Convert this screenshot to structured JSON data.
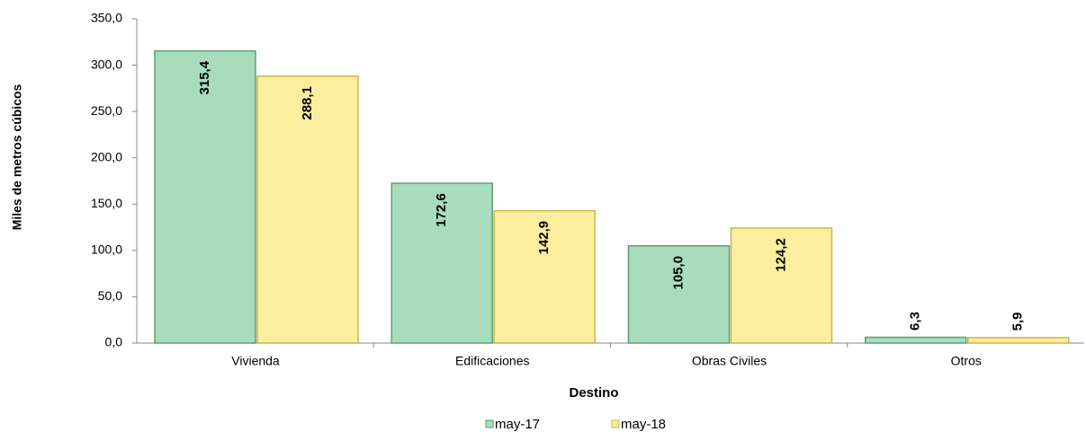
{
  "chart_data": {
    "type": "bar",
    "x_label": "Destino",
    "y_label": "Miles de metros cúbicos",
    "categories": [
      "Vivienda",
      "Edificaciones",
      "Obras Civiles",
      "Otros"
    ],
    "series": [
      {
        "name": "may-17",
        "color": "#a8dcbc",
        "values": [
          315.4,
          172.6,
          105.0,
          6.3
        ],
        "value_labels": [
          "315,4",
          "172,6",
          "105,0",
          "6,3"
        ]
      },
      {
        "name": "may-18",
        "color": "#fcee9f",
        "values": [
          288.1,
          142.9,
          124.2,
          5.9
        ],
        "value_labels": [
          "288,1",
          "142,9",
          "124,2",
          "5,9"
        ]
      }
    ],
    "ylim": [
      0,
      350
    ],
    "yticks": [
      {
        "value": 0,
        "label": "0,0"
      },
      {
        "value": 50,
        "label": "50,0"
      },
      {
        "value": 100,
        "label": "100,0"
      },
      {
        "value": 150,
        "label": "150,0"
      },
      {
        "value": 200,
        "label": "200,0"
      },
      {
        "value": 250,
        "label": "250,0"
      },
      {
        "value": 300,
        "label": "300,0"
      },
      {
        "value": 350,
        "label": "350,0"
      }
    ],
    "legend": "bottom"
  }
}
